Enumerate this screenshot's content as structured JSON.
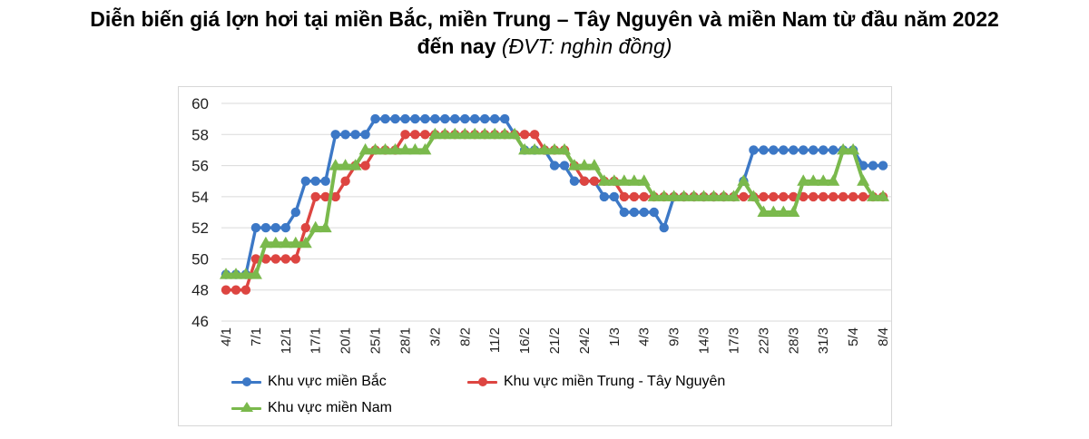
{
  "title": {
    "line1": "Diễn biến giá lợn hơi tại miền Bắc, miền Trung – Tây Nguyên và miền Nam từ đầu năm 2022",
    "line2_bold": "đến nay",
    "line2_italic": "(ĐVT: nghìn đồng)"
  },
  "colors": {
    "bac": "#3c78c6",
    "trung": "#dd4541",
    "nam": "#7ab94c",
    "grid": "#dadada",
    "frame_border": "#d7d7d7",
    "tick_text": "#1f1f1f"
  },
  "chart_data": {
    "type": "line",
    "title": "Diễn biến giá lợn hơi tại miền Bắc, miền Trung – Tây Nguyên và miền Nam từ đầu năm 2022 đến nay",
    "unit": "nghìn đồng",
    "ylim": [
      46,
      60
    ],
    "yticks": [
      46,
      48,
      50,
      52,
      54,
      56,
      58,
      60
    ],
    "grid": true,
    "legend_position": "bottom",
    "x_tick_labels": [
      "4/1",
      "7/1",
      "12/1",
      "17/1",
      "20/1",
      "25/1",
      "28/1",
      "3/2",
      "8/2",
      "11/2",
      "16/2",
      "21/2",
      "24/2",
      "1/3",
      "4/3",
      "9/3",
      "14/3",
      "17/3",
      "22/3",
      "28/3",
      "31/3",
      "5/4",
      "8/4"
    ],
    "label_every": 3,
    "series": [
      {
        "name": "Khu vực miền Bắc",
        "marker": "circle",
        "color_key": "bac",
        "values": [
          49,
          49,
          49,
          52,
          52,
          52,
          52,
          53,
          55,
          55,
          55,
          58,
          58,
          58,
          58,
          59,
          59,
          59,
          59,
          59,
          59,
          59,
          59,
          59,
          59,
          59,
          59,
          59,
          59,
          58,
          57,
          57,
          57,
          56,
          56,
          55,
          55,
          55,
          54,
          54,
          53,
          53,
          53,
          53,
          52,
          54,
          54,
          54,
          54,
          54,
          54,
          54,
          55,
          57,
          57,
          57,
          57,
          57,
          57,
          57,
          57,
          57,
          57,
          57,
          56,
          56,
          56
        ]
      },
      {
        "name": "Khu vực miền Trung - Tây Nguyên",
        "marker": "circle",
        "color_key": "trung",
        "values": [
          48,
          48,
          48,
          50,
          50,
          50,
          50,
          50,
          52,
          54,
          54,
          54,
          55,
          56,
          56,
          57,
          57,
          57,
          58,
          58,
          58,
          58,
          58,
          58,
          58,
          58,
          58,
          58,
          58,
          58,
          58,
          58,
          57,
          57,
          57,
          56,
          55,
          55,
          55,
          55,
          54,
          54,
          54,
          54,
          54,
          54,
          54,
          54,
          54,
          54,
          54,
          54,
          54,
          54,
          54,
          54,
          54,
          54,
          54,
          54,
          54,
          54,
          54,
          54,
          54,
          54,
          54
        ]
      },
      {
        "name": "Khu vực miền Nam",
        "marker": "triangle",
        "color_key": "nam",
        "values": [
          49,
          49,
          49,
          49,
          51,
          51,
          51,
          51,
          51,
          52,
          52,
          56,
          56,
          56,
          57,
          57,
          57,
          57,
          57,
          57,
          57,
          58,
          58,
          58,
          58,
          58,
          58,
          58,
          58,
          58,
          57,
          57,
          57,
          57,
          57,
          56,
          56,
          56,
          55,
          55,
          55,
          55,
          55,
          54,
          54,
          54,
          54,
          54,
          54,
          54,
          54,
          54,
          55,
          54,
          53,
          53,
          53,
          53,
          55,
          55,
          55,
          55,
          57,
          57,
          55,
          54,
          54
        ]
      }
    ]
  }
}
